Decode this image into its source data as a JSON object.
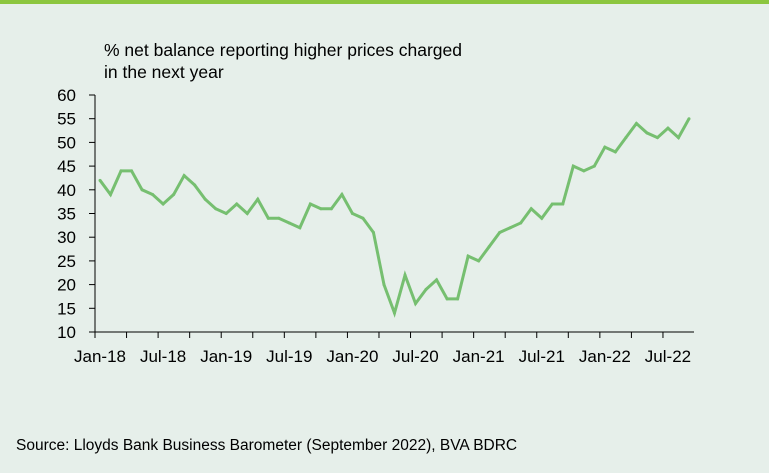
{
  "chart_data": {
    "type": "line",
    "title_lines": [
      "% net balance reporting higher prices charged",
      "in the next year"
    ],
    "source": "Source: Lloyds Bank Business Barometer (September 2022), BVA BDRC",
    "ylim": [
      10,
      60
    ],
    "yticks": [
      "10",
      "15",
      "20",
      "25",
      "30",
      "35",
      "40",
      "45",
      "50",
      "55",
      "60"
    ],
    "xticks": [
      {
        "label": "Jan-18",
        "index": 0
      },
      {
        "label": "Jul-18",
        "index": 6
      },
      {
        "label": "Jan-19",
        "index": 12
      },
      {
        "label": "Jul-19",
        "index": 18
      },
      {
        "label": "Jan-20",
        "index": 24
      },
      {
        "label": "Jul-20",
        "index": 30
      },
      {
        "label": "Jan-21",
        "index": 36
      },
      {
        "label": "Jul-21",
        "index": 42
      },
      {
        "label": "Jan-22",
        "index": 48
      },
      {
        "label": "Jul-22",
        "index": 54
      }
    ],
    "x": [
      "Jan-18",
      "Feb-18",
      "Mar-18",
      "Apr-18",
      "May-18",
      "Jun-18",
      "Jul-18",
      "Aug-18",
      "Sep-18",
      "Oct-18",
      "Nov-18",
      "Dec-18",
      "Jan-19",
      "Feb-19",
      "Mar-19",
      "Apr-19",
      "May-19",
      "Jun-19",
      "Jul-19",
      "Aug-19",
      "Sep-19",
      "Oct-19",
      "Nov-19",
      "Dec-19",
      "Jan-20",
      "Feb-20",
      "Mar-20",
      "Apr-20",
      "May-20",
      "Jun-20",
      "Jul-20",
      "Aug-20",
      "Sep-20",
      "Oct-20",
      "Nov-20",
      "Dec-20",
      "Jan-21",
      "Feb-21",
      "Mar-21",
      "Apr-21",
      "May-21",
      "Jun-21",
      "Jul-21",
      "Aug-21",
      "Sep-21",
      "Oct-21",
      "Nov-21",
      "Dec-21",
      "Jan-22",
      "Feb-22",
      "Mar-22",
      "Apr-22",
      "May-22",
      "Jun-22",
      "Jul-22",
      "Aug-22",
      "Sep-22"
    ],
    "series": [
      {
        "values": [
          42,
          39,
          44,
          44,
          40,
          39,
          37,
          39,
          43,
          41,
          38,
          36,
          35,
          37,
          35,
          38,
          34,
          34,
          33,
          32,
          37,
          36,
          36,
          39,
          35,
          34,
          31,
          20,
          14,
          22,
          16,
          19,
          21,
          17,
          17,
          26,
          25,
          28,
          31,
          32,
          33,
          36,
          34,
          37,
          37,
          45,
          44,
          45,
          49,
          48,
          51,
          54,
          52,
          51,
          53,
          51,
          55
        ]
      }
    ],
    "line_color": "#76bf70",
    "grid": false
  }
}
